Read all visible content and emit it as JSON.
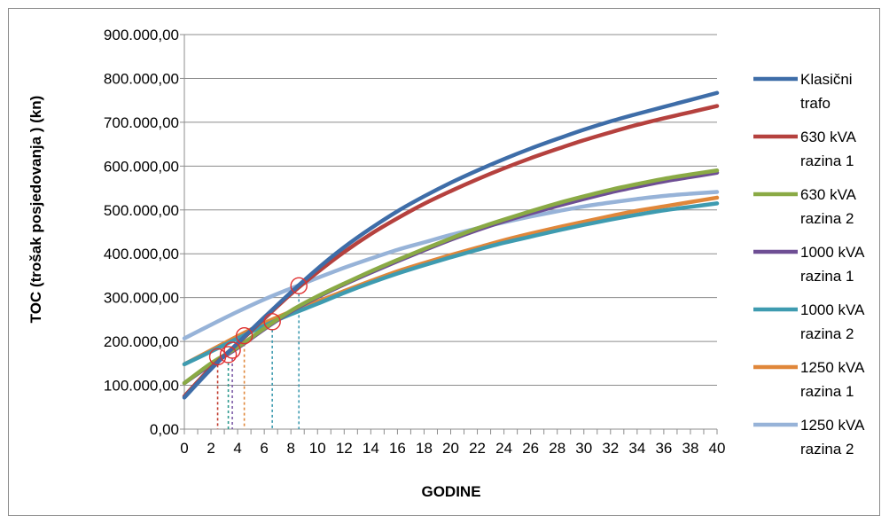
{
  "chart_data": {
    "type": "line",
    "title": "",
    "xlabel": "GODINE",
    "ylabel": "TOC (trošak posjedovanja ) (kn)",
    "x": [
      0,
      2,
      4,
      6,
      8,
      10,
      12,
      14,
      16,
      18,
      20,
      22,
      24,
      26,
      28,
      30,
      32,
      34,
      36,
      38,
      40
    ],
    "x_tick_labels": [
      "0",
      "2",
      "4",
      "6",
      "8",
      "10",
      "12",
      "14",
      "16",
      "18",
      "20",
      "22",
      "24",
      "26",
      "28",
      "30",
      "32",
      "34",
      "36",
      "38",
      "40"
    ],
    "y_tick_labels": [
      "0,00",
      "100.000,00",
      "200.000,00",
      "300.000,00",
      "400.000,00",
      "500.000,00",
      "600.000,00",
      "700.000,00",
      "800.000,00",
      "900.000,00"
    ],
    "ylim": [
      0,
      900000
    ],
    "xlim": [
      0,
      40
    ],
    "grid": "horizontal",
    "legend_position": "right",
    "series": [
      {
        "name": "Klasični trafo",
        "legend_lines": [
          "Klasični",
          "trafo"
        ],
        "color": "#3E6DA8",
        "values": [
          72000,
          137000,
          196000,
          255000,
          312000,
          366000,
          415000,
          458000,
          497000,
          531000,
          562000,
          590000,
          616000,
          640000,
          662000,
          683000,
          702000,
          719000,
          735000,
          751000,
          767000
        ]
      },
      {
        "name": "630 kVA razina 1",
        "legend_lines": [
          "630 kVA",
          "razina 1"
        ],
        "color": "#B5413E",
        "values": [
          75000,
          140000,
          195000,
          252000,
          308000,
          358000,
          404000,
          445000,
          481000,
          514000,
          543000,
          570000,
          595000,
          618000,
          639000,
          659000,
          677000,
          694000,
          709000,
          723000,
          737000
        ]
      },
      {
        "name": "630 kVA razina 2",
        "legend_lines": [
          "630 kVA",
          "razina 2"
        ],
        "color": "#8AAA45",
        "values": [
          105000,
          150000,
          187000,
          230000,
          270000,
          303000,
          332000,
          360000,
          386000,
          411000,
          435000,
          458000,
          478000,
          497000,
          515000,
          531000,
          546000,
          559000,
          571000,
          581000,
          590000
        ]
      },
      {
        "name": "1000 kVA razina 1",
        "legend_lines": [
          "1000 kVA",
          "razina 1"
        ],
        "color": "#6E4E94",
        "values": [
          105000,
          147000,
          185000,
          228000,
          268000,
          301000,
          330000,
          357000,
          383000,
          408000,
          432000,
          454000,
          474000,
          492000,
          509000,
          525000,
          540000,
          553000,
          565000,
          575000,
          585000
        ]
      },
      {
        "name": "1000 kVA razina 2",
        "legend_lines": [
          "1000 kVA",
          "razina 2"
        ],
        "color": "#3E9BB0",
        "values": [
          148000,
          177000,
          207000,
          236000,
          262000,
          286000,
          311000,
          334000,
          355000,
          374000,
          392000,
          409000,
          425000,
          439000,
          453000,
          466000,
          478000,
          489000,
          499000,
          507000,
          515000
        ]
      },
      {
        "name": "1250 kVA razina 1",
        "legend_lines": [
          "1250 kVA",
          "razina 1"
        ],
        "color": "#E0873A",
        "values": [
          148000,
          180000,
          212000,
          242000,
          268000,
          291000,
          315000,
          338000,
          360000,
          379000,
          397000,
          414000,
          431000,
          446000,
          460000,
          473000,
          486000,
          498000,
          508000,
          518000,
          528000
        ]
      },
      {
        "name": "1250 kVA razina 2",
        "legend_lines": [
          "1250 kVA",
          "razina 2"
        ],
        "color": "#97B3D8",
        "values": [
          207000,
          238000,
          268000,
          296000,
          321000,
          345000,
          368000,
          389000,
          409000,
          426000,
          443000,
          458000,
          472000,
          485000,
          497000,
          508000,
          517000,
          525000,
          532000,
          537000,
          541000
        ]
      }
    ],
    "intersection_markers": [
      {
        "x": 2.5,
        "y": 165000,
        "dash_color": "#C0392B"
      },
      {
        "x": 3.3,
        "y": 170000,
        "dash_color": "#2E9A8F"
      },
      {
        "x": 3.6,
        "y": 180000,
        "dash_color": "#7D5AA6"
      },
      {
        "x": 4.5,
        "y": 213000,
        "dash_color": "#E0873A"
      },
      {
        "x": 6.6,
        "y": 245000,
        "dash_color": "#3E9BB0"
      },
      {
        "x": 8.6,
        "y": 327000,
        "dash_color": "#3E9BB0"
      }
    ],
    "marker_color": "#E03030"
  }
}
